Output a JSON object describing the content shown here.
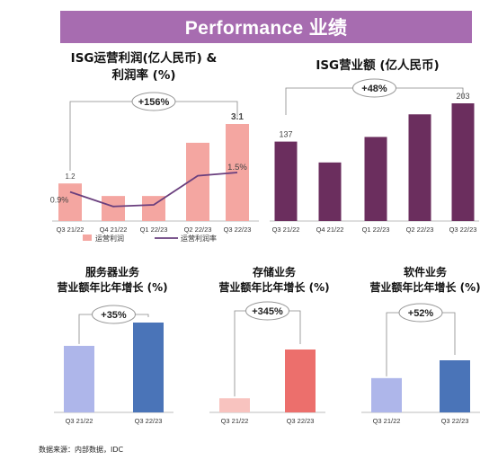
{
  "header": {
    "title": "Performance 业绩"
  },
  "source": "数据来源：内部数据，IDC",
  "colors": {
    "header_bg": "#a76cb0",
    "profit_bar": "#f4a6a1",
    "margin_line": "#6a3f7e",
    "revenue_bar": "#6b2e5e",
    "server_old": "#aeb6ea",
    "server_new": "#4a74b8",
    "storage_old": "#f8c3bf",
    "storage_new": "#ec6f6c",
    "software_old": "#aeb6ea",
    "software_new": "#4a74b8"
  },
  "chart_data": [
    {
      "id": "profit",
      "type": "bar",
      "title_lines": [
        "ISG运营利润(亿人民币) &",
        "利润率 (%)"
      ],
      "categories": [
        "Q3 21/22",
        "Q4 21/22",
        "Q1 22/23",
        "Q2 22/23",
        "Q3 22/23"
      ],
      "series": [
        {
          "name": "运营利润",
          "type": "bar",
          "values": [
            1.2,
            0.8,
            0.8,
            2.5,
            3.1
          ]
        },
        {
          "name": "运营利润率",
          "type": "line",
          "values": [
            0.9,
            0.45,
            0.5,
            1.4,
            1.5
          ]
        }
      ],
      "data_labels": {
        "bar": [
          "1.2",
          "",
          "",
          "",
          "3.1"
        ],
        "line": [
          "0.9%",
          "",
          "",
          "",
          "1.5%"
        ]
      },
      "annotation": "+156%",
      "legend": "bottom"
    },
    {
      "id": "revenue",
      "type": "bar",
      "title_lines": [
        "ISG营业额 (亿人民币)"
      ],
      "categories": [
        "Q3 21/22",
        "Q4 21/22",
        "Q1 22/23",
        "Q2 22/23",
        "Q3 22/23"
      ],
      "values": [
        137,
        101,
        145,
        184,
        203
      ],
      "data_labels": [
        "137",
        "",
        "",
        "",
        "203"
      ],
      "annotation": "+48%"
    },
    {
      "id": "server",
      "type": "bar",
      "title_lines": [
        "服务器业务",
        "营业额年比年增长 (%)"
      ],
      "categories": [
        "Q3 21/22",
        "Q3 22/23"
      ],
      "values": [
        100,
        135
      ],
      "annotation": "+35%"
    },
    {
      "id": "storage",
      "type": "bar",
      "title_lines": [
        "存储业务",
        "营业额年比年增长 (%)"
      ],
      "categories": [
        "Q3 21/22",
        "Q3 22/23"
      ],
      "values": [
        100,
        445
      ],
      "annotation": "+345%"
    },
    {
      "id": "software",
      "type": "bar",
      "title_lines": [
        "软件业务",
        "营业额年比年增长 (%)"
      ],
      "categories": [
        "Q3 21/22",
        "Q3 22/23"
      ],
      "values": [
        100,
        152
      ],
      "annotation": "+52%"
    }
  ]
}
